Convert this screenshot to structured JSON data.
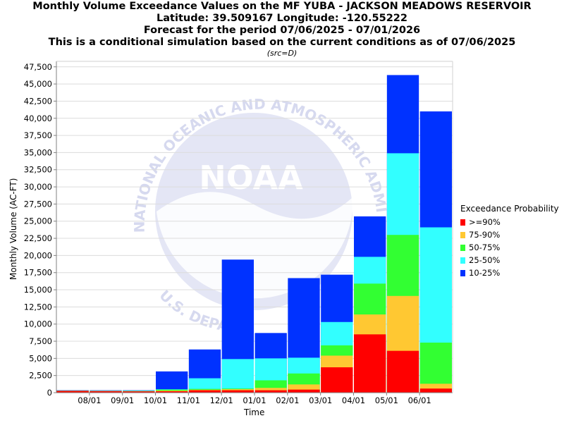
{
  "title": {
    "line1": "Monthly Volume Exceedance Values on the MF YUBA - JACKSON MEADOWS RESERVOIR",
    "line2": "Latitude: 39.509167 Longitude: -120.55222",
    "line3": "Forecast for the period 07/06/2025 - 07/01/2026",
    "line4": "This is a conditional simulation based on the current conditions as of 07/06/2025",
    "source": "(src=D)"
  },
  "watermark": {
    "text_top": "NATIONAL OCEANIC AND ATMOSPHERIC ADMINISTRATION",
    "logo": "NOAA",
    "text_bottom": "U.S. DEPARTMENT OF COMMERCE"
  },
  "legend": {
    "title": "Exceedance Probability",
    "items": [
      {
        "label": ">=90%",
        "color": "#ff0000"
      },
      {
        "label": "75-90%",
        "color": "#ffc832"
      },
      {
        "label": "50-75%",
        "color": "#32ff32"
      },
      {
        "label": "25-50%",
        "color": "#32ffff"
      },
      {
        "label": "10-25%",
        "color": "#0032ff"
      }
    ]
  },
  "chart_data": {
    "type": "bar",
    "stacked_overlay": true,
    "xlabel": "Time",
    "ylabel": "Monthly Volume (AC-FT)",
    "ylim": [
      0,
      48300
    ],
    "yticks": [
      0,
      2500,
      5000,
      7500,
      10000,
      12500,
      15000,
      17500,
      20000,
      22500,
      25000,
      27500,
      30000,
      32500,
      35000,
      37500,
      40000,
      42500,
      45000,
      47500
    ],
    "ytick_labels": [
      "0",
      "2,500",
      "5,000",
      "7,500",
      "10,000",
      "12,500",
      "15,000",
      "17,500",
      "20,000",
      "22,500",
      "25,000",
      "27,500",
      "30,000",
      "32,500",
      "35,000",
      "37,500",
      "40,000",
      "42,500",
      "45,000",
      "47,500"
    ],
    "categories": [
      "07/2025",
      "08/2025",
      "09/2025",
      "10/2025",
      "11/2025",
      "12/2025",
      "01/2026",
      "02/2026",
      "03/2026",
      "04/2026",
      "05/2026",
      "06/2026"
    ],
    "x_tick_labels": [
      "08/01",
      "09/01",
      "10/01",
      "11/01",
      "12/01",
      "01/01",
      "02/01",
      "03/01",
      "04/01",
      "05/01",
      "06/01"
    ],
    "series": [
      {
        "name": "10-25%",
        "color": "#0032ff",
        "values": [
          350,
          350,
          350,
          3100,
          6300,
          19400,
          8700,
          16700,
          17200,
          25700,
          46300,
          41000
        ]
      },
      {
        "name": "25-50%",
        "color": "#32ffff",
        "values": [
          300,
          300,
          300,
          500,
          2100,
          4900,
          5000,
          5100,
          10300,
          19800,
          34900,
          24100
        ]
      },
      {
        "name": "50-75%",
        "color": "#32ff32",
        "values": [
          280,
          260,
          240,
          450,
          550,
          600,
          1800,
          2800,
          6900,
          15900,
          23000,
          7300
        ]
      },
      {
        "name": "75-90%",
        "color": "#ffc832",
        "values": [
          270,
          250,
          220,
          300,
          420,
          500,
          700,
          1200,
          5400,
          11400,
          14100,
          1300
        ]
      },
      {
        "name": ">=90%",
        "color": "#ff0000",
        "values": [
          260,
          220,
          190,
          200,
          350,
          350,
          350,
          450,
          3700,
          8500,
          6100,
          600
        ]
      }
    ]
  }
}
